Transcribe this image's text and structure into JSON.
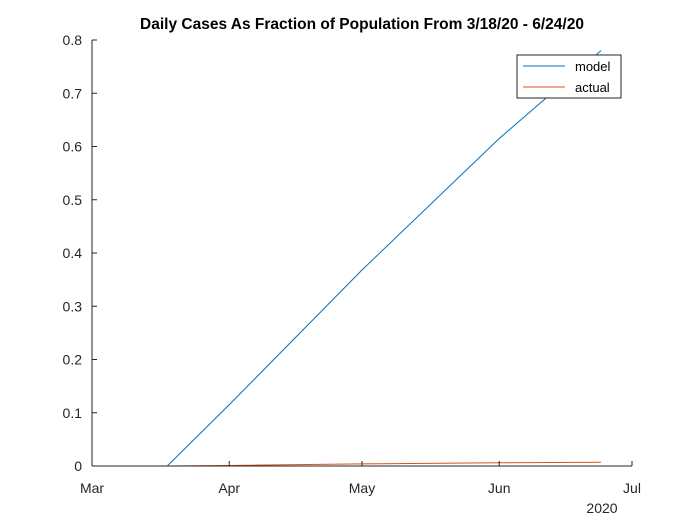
{
  "chart_data": {
    "type": "line",
    "title": "Daily Cases As Fraction of Population From 3/18/20 - 6/24/20",
    "xlabel": "",
    "ylabel": "",
    "x_tick_labels": [
      "Mar",
      "Apr",
      "May",
      "Jun",
      "Jul"
    ],
    "x_tick_dates": [
      "2020-03-01",
      "2020-04-01",
      "2020-05-01",
      "2020-06-01",
      "2020-07-01"
    ],
    "x_secondary_label": "2020",
    "xlim": [
      "2020-03-01",
      "2020-07-01"
    ],
    "ylim": [
      0,
      0.8
    ],
    "y_ticks": [
      "0",
      "0.1",
      "0.2",
      "0.3",
      "0.4",
      "0.5",
      "0.6",
      "0.7",
      "0.8"
    ],
    "grid": false,
    "legend_position": "top-right",
    "series": [
      {
        "name": "model",
        "color": "#0072BD",
        "points": [
          {
            "x": "2020-03-18",
            "y": 0
          },
          {
            "x": "2020-04-01",
            "y": 0.115
          },
          {
            "x": "2020-05-01",
            "y": 0.368
          },
          {
            "x": "2020-06-01",
            "y": 0.615
          },
          {
            "x": "2020-06-24",
            "y": 0.78
          }
        ]
      },
      {
        "name": "actual",
        "color": "#D95319",
        "points": [
          {
            "x": "2020-03-18",
            "y": 0
          },
          {
            "x": "2020-04-01",
            "y": 0.001
          },
          {
            "x": "2020-05-01",
            "y": 0.004
          },
          {
            "x": "2020-06-01",
            "y": 0.006
          },
          {
            "x": "2020-06-24",
            "y": 0.007
          }
        ]
      }
    ]
  }
}
